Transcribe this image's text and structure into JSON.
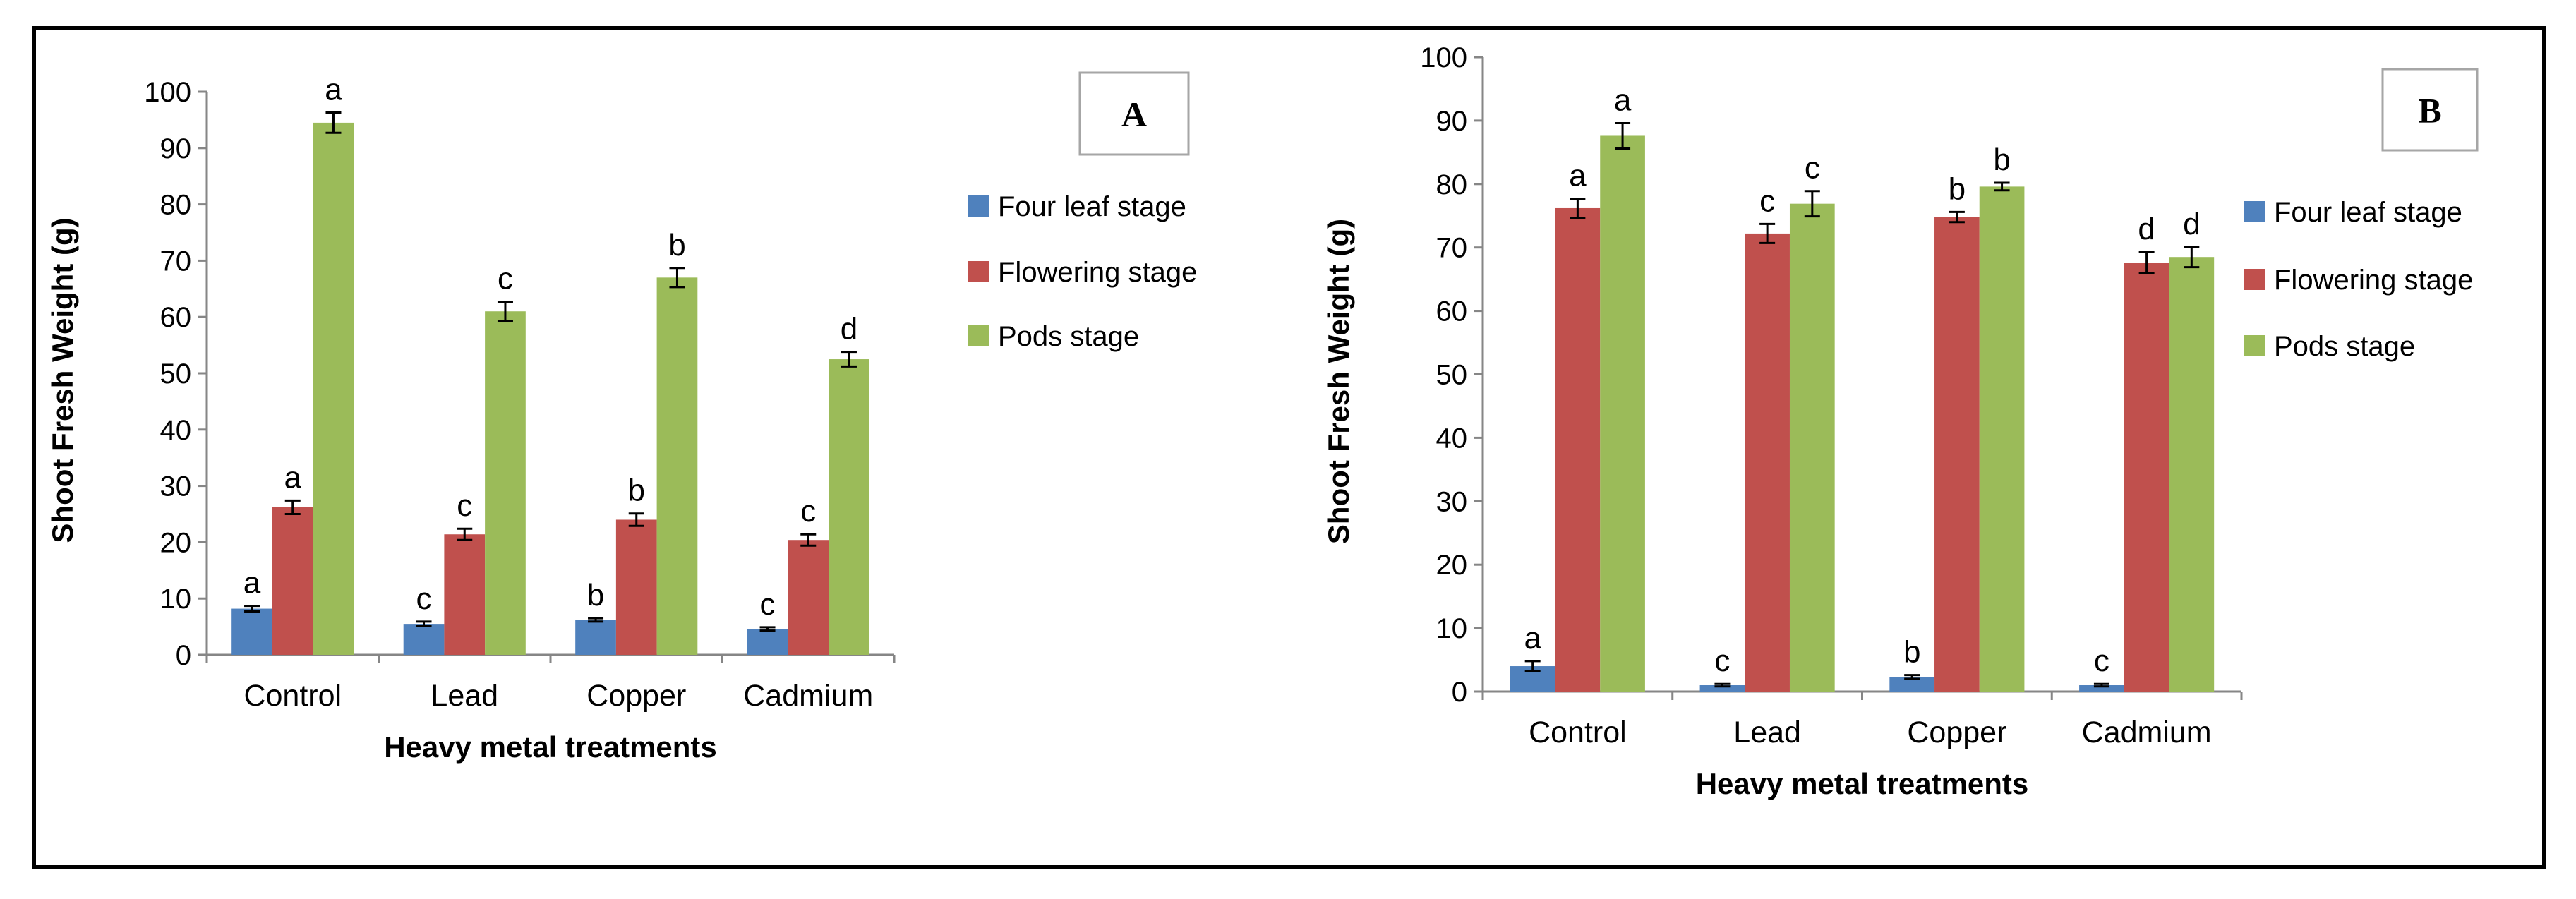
{
  "figure": {
    "colors": {
      "four_leaf": "#4f81bd",
      "flowering": "#c0504d",
      "pods": "#9bbb59"
    }
  },
  "chart_data": [
    {
      "panel": "A",
      "type": "bar",
      "categories": [
        "Control",
        "Lead",
        "Copper",
        "Cadmium"
      ],
      "xlabel": "Heavy metal treatments",
      "ylabel": "Shoot Fresh Weight (g)",
      "ylim": [
        0,
        100
      ],
      "yticks": [
        0,
        10,
        20,
        30,
        40,
        50,
        60,
        70,
        80,
        90,
        100
      ],
      "legend_position": "right",
      "series": [
        {
          "name": "Four leaf stage",
          "color": "#4f81bd",
          "values": [
            8.2,
            5.5,
            6.2,
            4.6
          ],
          "errors": [
            0.5,
            0.4,
            0.3,
            0.3
          ],
          "letters": [
            "a",
            "c",
            "b",
            "c"
          ]
        },
        {
          "name": "Flowering stage",
          "color": "#c0504d",
          "values": [
            26.2,
            21.4,
            24.0,
            20.4
          ],
          "errors": [
            1.2,
            1.0,
            1.1,
            1.0
          ],
          "letters": [
            "a",
            "c",
            "b",
            "c"
          ]
        },
        {
          "name": "Pods stage",
          "color": "#9bbb59",
          "values": [
            94.5,
            61.0,
            67.0,
            52.5
          ],
          "errors": [
            1.8,
            1.7,
            1.7,
            1.3
          ],
          "letters": [
            "a",
            "c",
            "b",
            "d"
          ]
        }
      ]
    },
    {
      "panel": "B",
      "type": "bar",
      "categories": [
        "Control",
        "Lead",
        "Copper",
        "Cadmium"
      ],
      "xlabel": "Heavy metal treatments",
      "ylabel": "Shoot Fresh Weight (g)",
      "ylim": [
        0,
        100
      ],
      "yticks": [
        0,
        10,
        20,
        30,
        40,
        50,
        60,
        70,
        80,
        90,
        100
      ],
      "legend_position": "right",
      "series": [
        {
          "name": "Four leaf stage",
          "color": "#4f81bd",
          "values": [
            4.0,
            1.0,
            2.3,
            1.0
          ],
          "errors": [
            0.8,
            0.2,
            0.3,
            0.2
          ],
          "letters": [
            "a",
            "c",
            "b",
            "c"
          ]
        },
        {
          "name": "Flowering stage",
          "color": "#c0504d",
          "values": [
            76.2,
            72.2,
            74.8,
            67.6
          ],
          "errors": [
            1.5,
            1.5,
            0.8,
            1.7
          ],
          "letters": [
            "a",
            "c",
            "b",
            "d"
          ]
        },
        {
          "name": "Pods stage",
          "color": "#9bbb59",
          "values": [
            87.6,
            76.9,
            79.6,
            68.5
          ],
          "errors": [
            2.0,
            2.0,
            0.6,
            1.6
          ],
          "letters": [
            "a",
            "c",
            "b",
            "d"
          ]
        }
      ]
    }
  ]
}
